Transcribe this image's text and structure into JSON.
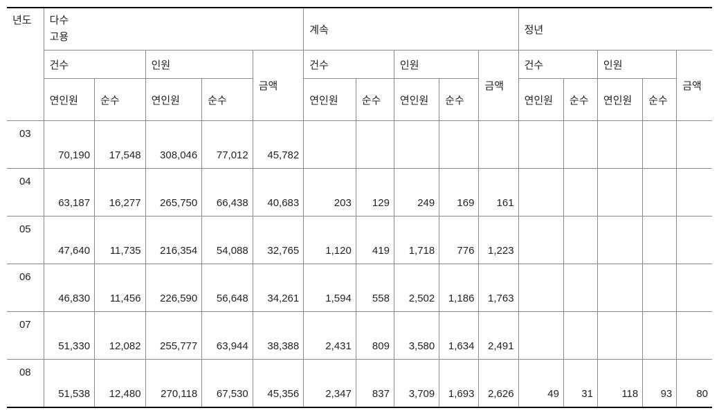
{
  "headers": {
    "year": "년도",
    "group1_line1": "다수",
    "group1_line2": "고용",
    "group2": "계속",
    "group3": "정년",
    "cases": "건수",
    "persons": "인원",
    "amount": "금액",
    "yeoninwon": "연인원",
    "sunsu": "순수"
  },
  "rows": [
    {
      "year": "03",
      "g1": [
        "70,190",
        "17,548",
        "308,046",
        "77,012",
        "45,782"
      ],
      "g2": [
        "",
        "",
        "",
        "",
        ""
      ],
      "g3": [
        "",
        "",
        "",
        "",
        ""
      ]
    },
    {
      "year": "04",
      "g1": [
        "63,187",
        "16,277",
        "265,750",
        "66,438",
        "40,683"
      ],
      "g2": [
        "203",
        "129",
        "249",
        "169",
        "161"
      ],
      "g3": [
        "",
        "",
        "",
        "",
        ""
      ]
    },
    {
      "year": "05",
      "g1": [
        "47,640",
        "11,735",
        "216,354",
        "54,088",
        "32,765"
      ],
      "g2": [
        "1,120",
        "419",
        "1,718",
        "776",
        "1,223"
      ],
      "g3": [
        "",
        "",
        "",
        "",
        ""
      ]
    },
    {
      "year": "06",
      "g1": [
        "46,830",
        "11,456",
        "226,590",
        "56,648",
        "34,261"
      ],
      "g2": [
        "1,594",
        "558",
        "2,502",
        "1,186",
        "1,763"
      ],
      "g3": [
        "",
        "",
        "",
        "",
        ""
      ]
    },
    {
      "year": "07",
      "g1": [
        "51,330",
        "12,082",
        "255,777",
        "63,944",
        "38,388"
      ],
      "g2": [
        "2,431",
        "809",
        "3,580",
        "1,634",
        "2,491"
      ],
      "g3": [
        "",
        "",
        "",
        "",
        ""
      ]
    },
    {
      "year": "08",
      "g1": [
        "51,538",
        "12,480",
        "270,118",
        "67,530",
        "45,356"
      ],
      "g2": [
        "2,347",
        "837",
        "3,709",
        "1,693",
        "2,626"
      ],
      "g3": [
        "49",
        "31",
        "118",
        "93",
        "80"
      ]
    }
  ]
}
